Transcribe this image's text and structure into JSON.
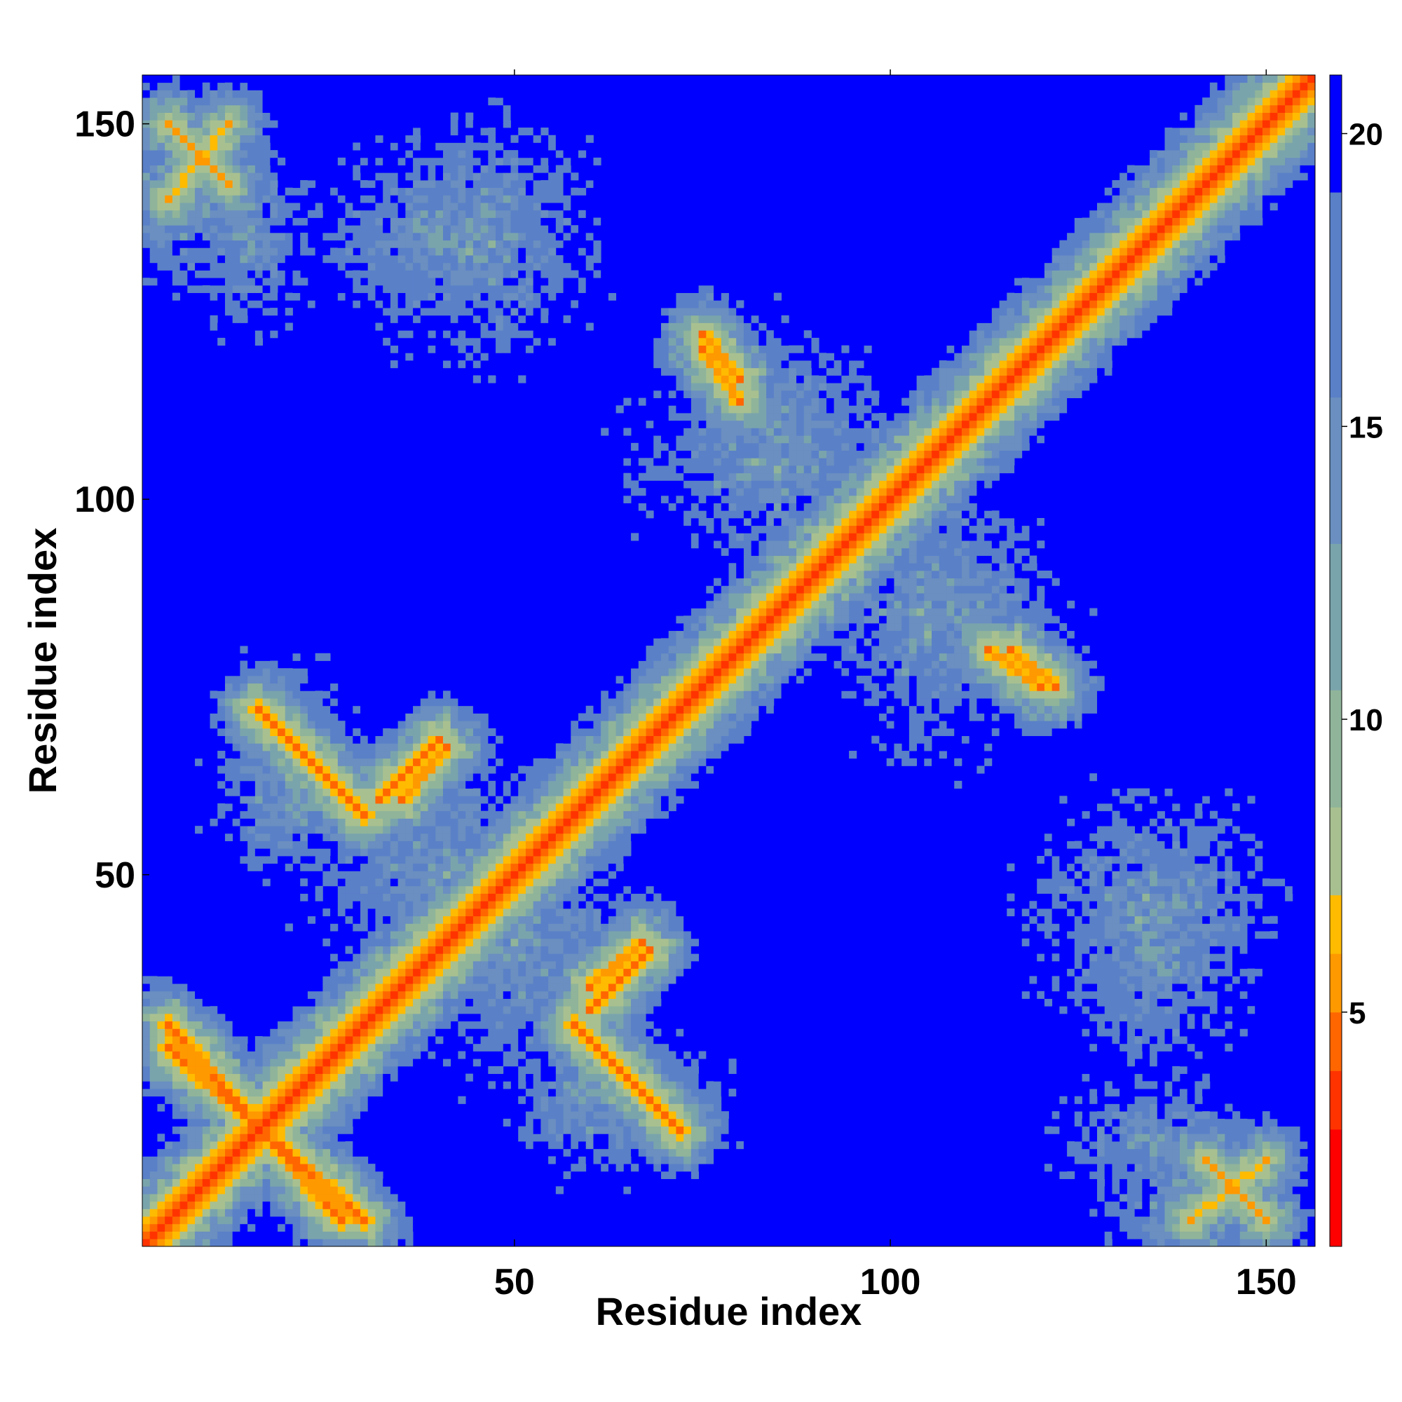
{
  "chart_data": {
    "type": "heatmap",
    "title": "",
    "xlabel": "Residue index",
    "ylabel": "Residue index",
    "xlim": [
      1,
      156
    ],
    "ylim": [
      1,
      156
    ],
    "x_ticks": [
      50,
      100,
      150
    ],
    "y_ticks": [
      50,
      100,
      150
    ],
    "x_tick_labels": [
      "50",
      "100",
      "150"
    ],
    "y_tick_labels": [
      "50",
      "100",
      "150"
    ],
    "colorbar": {
      "range": [
        1,
        21
      ],
      "ticks": [
        5,
        10,
        15,
        20
      ],
      "tick_labels": [
        "5",
        "10",
        "15",
        "20"
      ],
      "position": "right",
      "colors": [
        "#ff0000",
        "#ff3300",
        "#ff6600",
        "#ff9900",
        "#ffbb00",
        "#a8c090",
        "#8fb49a",
        "#7aa4ac",
        "#6a8fc0",
        "#5a80c8",
        "#0000ff"
      ]
    },
    "matrix_symmetric": true,
    "background_value_above_21": "#0000ff",
    "structural_features": [
      {
        "kind": "diagonal",
        "from": [
          1,
          1
        ],
        "to": [
          156,
          156
        ],
        "distance": 3.8
      },
      {
        "kind": "antiparallel",
        "from": [
          4,
          30
        ],
        "to": [
          27,
          4
        ],
        "distance": 5.5
      },
      {
        "kind": "antiparallel",
        "from": [
          16,
          72
        ],
        "to": [
          30,
          58
        ],
        "distance": 5.5
      },
      {
        "kind": "antiparallel",
        "from": [
          32,
          60
        ],
        "to": [
          40,
          68
        ],
        "distance": 6.0
      },
      {
        "kind": "antiparallel",
        "from": [
          58,
          30
        ],
        "to": [
          70,
          18
        ],
        "distance": 5.5
      },
      {
        "kind": "antiparallel",
        "from": [
          60,
          35
        ],
        "to": [
          67,
          41
        ],
        "distance": 6.0
      },
      {
        "kind": "antiparallel",
        "from": [
          75,
          122
        ],
        "to": [
          80,
          116
        ],
        "distance": 6.0
      },
      {
        "kind": "antiparallel",
        "from": [
          113,
          80
        ],
        "to": [
          120,
          75
        ],
        "distance": 6.0
      },
      {
        "kind": "antiparallel",
        "from": [
          4,
          150
        ],
        "to": [
          12,
          142
        ],
        "distance": 7.0
      },
      {
        "kind": "antiparallel",
        "from": [
          140,
          4
        ],
        "to": [
          150,
          12
        ],
        "distance": 7.0
      }
    ]
  }
}
